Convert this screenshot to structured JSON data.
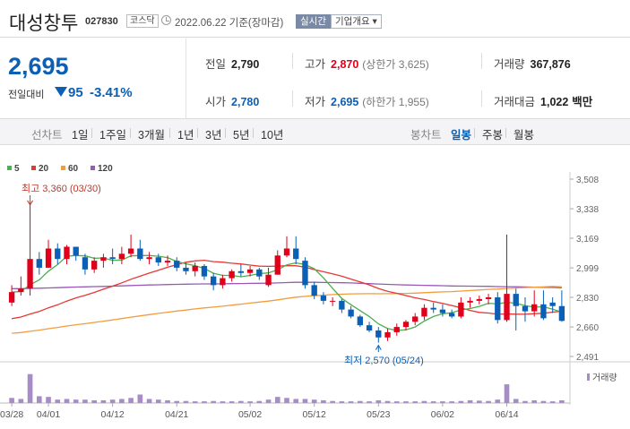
{
  "header": {
    "stock_name": "대성창투",
    "stock_code": "027830",
    "market": "코스닥",
    "date_text": "2022.06.22 기준(장마감)",
    "realtime_button": "실시간",
    "company_info_button": "기업개요 ▾"
  },
  "price": {
    "current": "2,695",
    "prev_label": "전일대비",
    "change": "95",
    "change_rate": "-3.41%",
    "direction": "down"
  },
  "quote": {
    "prev_close": {
      "label": "전일",
      "value": "2,790"
    },
    "high": {
      "label": "고가",
      "value": "2,870",
      "sub": "(상한가 3,625)"
    },
    "volume": {
      "label": "거래량",
      "value": "367,876"
    },
    "open": {
      "label": "시가",
      "value": "2,780"
    },
    "low": {
      "label": "저가",
      "value": "2,695",
      "sub": "(하한가 1,955)"
    },
    "amount": {
      "label": "거래대금",
      "value": "1,022",
      "unit": "백만"
    }
  },
  "tabs": {
    "line_header": "선차트",
    "line_periods": [
      "1일",
      "1주일",
      "3개월",
      "1년",
      "3년",
      "5년",
      "10년"
    ],
    "candle_header": "봉차트",
    "candle_periods": [
      "일봉",
      "주봉",
      "월봉"
    ],
    "active_candle": "일봉"
  },
  "colors": {
    "up": "#e0001b",
    "down": "#0b5fb5",
    "ma5": "#4caf50",
    "ma20": "#e53935",
    "ma60": "#f39c3c",
    "ma120": "#9b59b6",
    "volume": "#a78cc9"
  },
  "chart_data": {
    "type": "candlestick",
    "legend": [
      {
        "name": "5",
        "color": "#4caf50"
      },
      {
        "name": "20",
        "color": "#e53935"
      },
      {
        "name": "60",
        "color": "#f39c3c"
      },
      {
        "name": "120",
        "color": "#9b59b6"
      }
    ],
    "y_ticks": [
      "3,508",
      "3,338",
      "3,169",
      "2,999",
      "2,830",
      "2,660",
      "2,491"
    ],
    "ylim": [
      2491,
      3508
    ],
    "x_labels": [
      {
        "i": 0,
        "label": "03/28"
      },
      {
        "i": 4,
        "label": "04/01"
      },
      {
        "i": 11,
        "label": "04/12"
      },
      {
        "i": 18,
        "label": "04/21"
      },
      {
        "i": 26,
        "label": "05/02"
      },
      {
        "i": 33,
        "label": "05/12"
      },
      {
        "i": 40,
        "label": "05/23"
      },
      {
        "i": 47,
        "label": "06/02"
      },
      {
        "i": 54,
        "label": "06/14"
      }
    ],
    "annotation_high": "최고 3,360 (03/30)",
    "annotation_low": "최저 2,570 (05/24)",
    "volume_label": "거래량",
    "candles": [
      [
        2800,
        2900,
        2780,
        2860
      ],
      [
        2860,
        2950,
        2840,
        2880
      ],
      [
        2880,
        3360,
        2840,
        3050
      ],
      [
        3050,
        3090,
        2960,
        3000
      ],
      [
        3000,
        3160,
        3000,
        3110
      ],
      [
        3110,
        3140,
        3020,
        3050
      ],
      [
        3050,
        3130,
        3020,
        3120
      ],
      [
        3120,
        3120,
        3040,
        3070
      ],
      [
        3060,
        3080,
        2960,
        2990
      ],
      [
        2990,
        3060,
        2970,
        3040
      ],
      [
        3040,
        3080,
        3000,
        3060
      ],
      [
        3060,
        3110,
        3020,
        3050
      ],
      [
        3050,
        3120,
        3020,
        3080
      ],
      [
        3080,
        3190,
        3060,
        3110
      ],
      [
        3110,
        3160,
        3040,
        3050
      ],
      [
        3050,
        3090,
        3020,
        3060
      ],
      [
        3060,
        3080,
        3010,
        3030
      ],
      [
        3030,
        3070,
        3010,
        3040
      ],
      [
        3040,
        3060,
        2980,
        3000
      ],
      [
        3000,
        3030,
        2960,
        2980
      ],
      [
        2980,
        3030,
        2950,
        3010
      ],
      [
        3010,
        3020,
        2930,
        2950
      ],
      [
        2950,
        2970,
        2870,
        2900
      ],
      [
        2900,
        2960,
        2880,
        2940
      ],
      [
        2940,
        2990,
        2920,
        2980
      ],
      [
        2980,
        3020,
        2950,
        2970
      ],
      [
        2970,
        3010,
        2950,
        2990
      ],
      [
        2990,
        3000,
        2930,
        2950
      ],
      [
        2900,
        3000,
        2890,
        2960
      ],
      [
        2960,
        3100,
        2960,
        3070
      ],
      [
        3070,
        3180,
        3060,
        3110
      ],
      [
        3110,
        3180,
        3020,
        3050
      ],
      [
        3040,
        3060,
        2880,
        2900
      ],
      [
        2900,
        2920,
        2820,
        2840
      ],
      [
        2840,
        2860,
        2790,
        2810
      ],
      [
        2810,
        2830,
        2780,
        2810
      ],
      [
        2810,
        2820,
        2740,
        2760
      ],
      [
        2760,
        2780,
        2710,
        2720
      ],
      [
        2720,
        2730,
        2660,
        2670
      ],
      [
        2670,
        2690,
        2630,
        2640
      ],
      [
        2640,
        2660,
        2570,
        2600
      ],
      [
        2600,
        2650,
        2580,
        2630
      ],
      [
        2630,
        2680,
        2610,
        2660
      ],
      [
        2660,
        2700,
        2640,
        2690
      ],
      [
        2690,
        2740,
        2670,
        2720
      ],
      [
        2720,
        2790,
        2700,
        2770
      ],
      [
        2770,
        2800,
        2740,
        2760
      ],
      [
        2760,
        2790,
        2720,
        2740
      ],
      [
        2740,
        2760,
        2710,
        2720
      ],
      [
        2720,
        2830,
        2710,
        2800
      ],
      [
        2800,
        2830,
        2770,
        2810
      ],
      [
        2810,
        2840,
        2790,
        2820
      ],
      [
        2820,
        2850,
        2790,
        2830
      ],
      [
        2830,
        2860,
        2680,
        2700
      ],
      [
        2700,
        3190,
        2690,
        2850
      ],
      [
        2850,
        2880,
        2640,
        2780
      ],
      [
        2780,
        2830,
        2690,
        2750
      ],
      [
        2750,
        2870,
        2720,
        2790
      ],
      [
        2790,
        2870,
        2700,
        2710
      ],
      [
        2800,
        2830,
        2740,
        2780
      ],
      [
        2780,
        2870,
        2690,
        2695
      ]
    ],
    "volumes": [
      0.15,
      0.12,
      0.85,
      0.2,
      0.18,
      0.1,
      0.12,
      0.1,
      0.1,
      0.08,
      0.08,
      0.1,
      0.12,
      0.15,
      0.25,
      0.12,
      0.1,
      0.08,
      0.06,
      0.06,
      0.05,
      0.05,
      0.06,
      0.05,
      0.05,
      0.06,
      0.05,
      0.06,
      0.1,
      0.18,
      0.15,
      0.12,
      0.12,
      0.1,
      0.08,
      0.06,
      0.05,
      0.05,
      0.06,
      0.05,
      0.08,
      0.06,
      0.05,
      0.05,
      0.05,
      0.06,
      0.05,
      0.05,
      0.05,
      0.06,
      0.08,
      0.07,
      0.06,
      0.1,
      0.55,
      0.12,
      0.06,
      0.08,
      0.06,
      0.05,
      0.08
    ]
  }
}
